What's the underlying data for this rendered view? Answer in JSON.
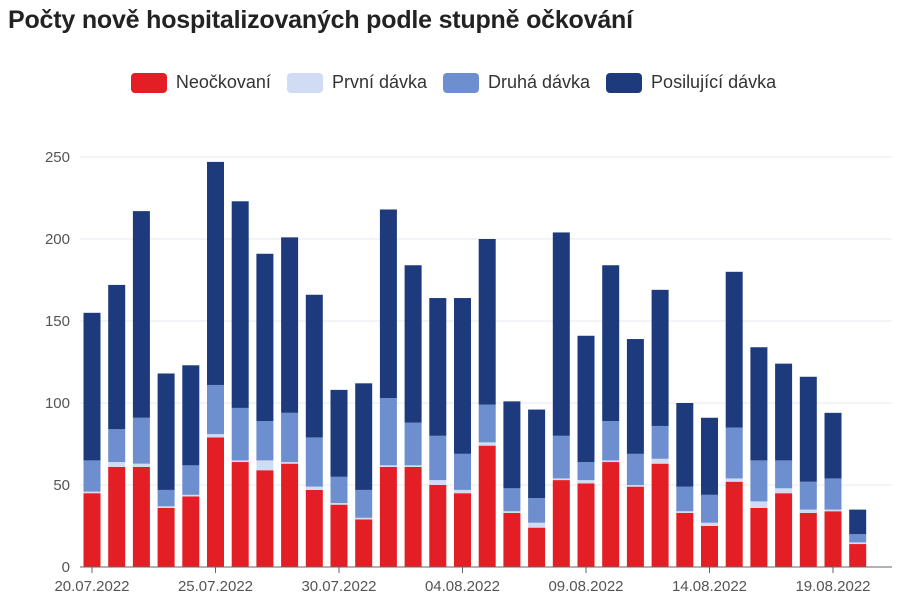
{
  "title": "Počty nově hospitalizovaných podle stupně očkování",
  "colors": {
    "unvaccinated": "#e31e24",
    "first_dose": "#d0dcf3",
    "second_dose": "#6d8fcf",
    "booster": "#1d3b7c",
    "grid": "#e4e8f0",
    "axis": "#666666"
  },
  "chart_data": {
    "type": "bar",
    "stacked": true,
    "title": "Počty nově hospitalizovaných podle stupně očkování",
    "categories": [
      "20.07.2022",
      "21.07.2022",
      "22.07.2022",
      "23.07.2022",
      "24.07.2022",
      "25.07.2022",
      "26.07.2022",
      "27.07.2022",
      "28.07.2022",
      "29.07.2022",
      "30.07.2022",
      "31.07.2022",
      "01.08.2022",
      "02.08.2022",
      "03.08.2022",
      "04.08.2022",
      "05.08.2022",
      "06.08.2022",
      "07.08.2022",
      "08.08.2022",
      "09.08.2022",
      "10.08.2022",
      "11.08.2022",
      "12.08.2022",
      "13.08.2022",
      "14.08.2022",
      "15.08.2022",
      "16.08.2022",
      "17.08.2022",
      "18.08.2022",
      "19.08.2022",
      "20.08.2022",
      "21.08.2022"
    ],
    "x_tick_labels": [
      "20.07.2022",
      "25.07.2022",
      "30.07.2022",
      "04.08.2022",
      "09.08.2022",
      "14.08.2022",
      "19.08.2022"
    ],
    "series": [
      {
        "name": "Neočkovaní",
        "color": "#e31e24",
        "values": [
          45,
          61,
          61,
          36,
          43,
          79,
          64,
          59,
          63,
          47,
          38,
          29,
          61,
          61,
          50,
          45,
          74,
          33,
          24,
          53,
          51,
          64,
          49,
          63,
          33,
          25,
          52,
          36,
          45,
          33,
          34,
          14,
          0
        ]
      },
      {
        "name": "První dávka",
        "color": "#d0dcf3",
        "values": [
          1,
          3,
          2,
          1,
          1,
          2,
          1,
          6,
          1,
          2,
          1,
          1,
          1,
          1,
          3,
          2,
          2,
          1,
          3,
          1,
          2,
          1,
          1,
          3,
          1,
          2,
          2,
          4,
          3,
          2,
          1,
          1,
          0
        ]
      },
      {
        "name": "Druhá dávka",
        "color": "#6d8fcf",
        "values": [
          19,
          20,
          28,
          10,
          18,
          30,
          32,
          24,
          30,
          30,
          16,
          17,
          41,
          26,
          27,
          22,
          23,
          14,
          15,
          26,
          11,
          24,
          19,
          20,
          15,
          17,
          31,
          25,
          17,
          17,
          19,
          5,
          0
        ]
      },
      {
        "name": "Posilující dávka",
        "color": "#1d3b7c",
        "values": [
          90,
          88,
          126,
          71,
          61,
          136,
          126,
          102,
          107,
          87,
          53,
          65,
          115,
          96,
          84,
          95,
          101,
          53,
          54,
          124,
          77,
          95,
          70,
          83,
          51,
          47,
          95,
          69,
          59,
          64,
          40,
          15,
          0
        ]
      }
    ],
    "ylim": [
      0,
      260
    ],
    "y_ticks": [
      0,
      50,
      100,
      150,
      200,
      250
    ],
    "xlabel": "",
    "ylabel": "",
    "grid": true,
    "legend_position": "top-center"
  }
}
